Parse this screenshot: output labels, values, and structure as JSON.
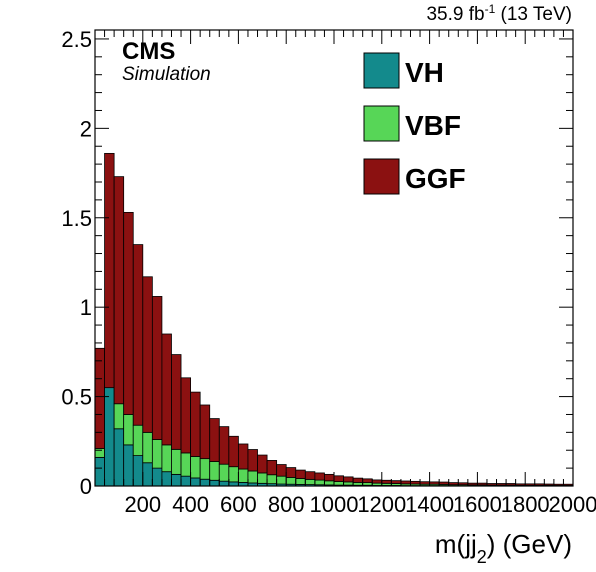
{
  "header": {
    "lumi_value": "35.9 fb",
    "lumi_exp": "-1",
    "lumi_energy": " (13 TeV)",
    "experiment": "CMS",
    "subtitle": "Simulation"
  },
  "chart_data": {
    "type": "bar",
    "stacked": true,
    "xlabel_main": "m(jj",
    "xlabel_sub": "2",
    "xlabel_tail": ") (GeV)",
    "ylabel": "",
    "xlim": [
      0,
      2000
    ],
    "ylim": [
      0,
      2.55
    ],
    "bin_width": 40,
    "x_ticks": [
      200,
      400,
      600,
      800,
      1000,
      1200,
      1400,
      1600,
      1800,
      2000
    ],
    "y_ticks": [
      0,
      0.5,
      1,
      1.5,
      2,
      2.5
    ],
    "y_tick_labels": [
      "0",
      "0.5",
      "1",
      "1.5",
      "2",
      "2.5"
    ],
    "legend_position": "top-right",
    "grid": false,
    "series": [
      {
        "name": "VH",
        "color": "#138a8c",
        "values": [
          0.16,
          0.55,
          0.32,
          0.23,
          0.17,
          0.13,
          0.1,
          0.08,
          0.065,
          0.055,
          0.045,
          0.038,
          0.032,
          0.027,
          0.023,
          0.02,
          0.017,
          0.015,
          0.013,
          0.011,
          0.01,
          0.009,
          0.008,
          0.007,
          0.006,
          0.005,
          0.005,
          0.004,
          0.004,
          0.003,
          0.003,
          0.003,
          0.002,
          0.002,
          0.002,
          0.002,
          0.002,
          0.001,
          0.001,
          0.001,
          0.001,
          0.001,
          0.001,
          0.001,
          0.001,
          0.001,
          0.001,
          0.001,
          0.001,
          0.001
        ]
      },
      {
        "name": "VBF",
        "color": "#57d657",
        "values": [
          0.05,
          0.0,
          0.14,
          0.17,
          0.17,
          0.17,
          0.16,
          0.15,
          0.14,
          0.13,
          0.12,
          0.115,
          0.105,
          0.095,
          0.085,
          0.075,
          0.067,
          0.058,
          0.05,
          0.044,
          0.038,
          0.033,
          0.029,
          0.026,
          0.023,
          0.02,
          0.018,
          0.016,
          0.015,
          0.013,
          0.012,
          0.011,
          0.01,
          0.009,
          0.008,
          0.008,
          0.007,
          0.006,
          0.006,
          0.005,
          0.005,
          0.004,
          0.004,
          0.004,
          0.003,
          0.003,
          0.003,
          0.003,
          0.002,
          0.002
        ]
      },
      {
        "name": "GGF",
        "color": "#8b1111",
        "values": [
          0.56,
          1.31,
          1.27,
          1.13,
          1.01,
          0.87,
          0.8,
          0.62,
          0.53,
          0.42,
          0.36,
          0.3,
          0.24,
          0.21,
          0.17,
          0.14,
          0.12,
          0.1,
          0.08,
          0.065,
          0.055,
          0.047,
          0.043,
          0.04,
          0.036,
          0.032,
          0.028,
          0.024,
          0.021,
          0.018,
          0.017,
          0.016,
          0.016,
          0.015,
          0.014,
          0.013,
          0.013,
          0.012,
          0.011,
          0.01,
          0.01,
          0.009,
          0.009,
          0.009,
          0.008,
          0.008,
          0.008,
          0.007,
          0.007,
          0.007
        ]
      }
    ]
  }
}
